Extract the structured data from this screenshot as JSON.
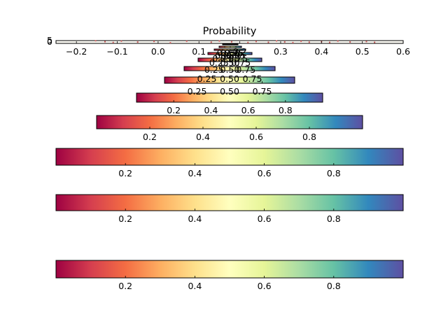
{
  "chart_data": {
    "type": "scatter",
    "title": "Probability",
    "xlim": [
      -0.25,
      0.6
    ],
    "ylim": [
      0,
      5
    ],
    "x_ticks": [
      -0.2,
      -0.1,
      0.0,
      0.1,
      0.2,
      0.3,
      0.4,
      0.5,
      0.6
    ],
    "x_tick_labels": [
      "−0.2",
      "−0.1",
      "0.0",
      "0.1",
      "0.2",
      "0.3",
      "0.4",
      "0.5",
      "0.6"
    ],
    "y_tick_labels": [
      "0",
      "5"
    ],
    "points": [
      {
        "x": -0.153,
        "y": 4.7
      },
      {
        "x": -0.13,
        "y": 3.1
      },
      {
        "x": -0.11,
        "y": 1.6
      },
      {
        "x": -0.09,
        "y": 4.0
      },
      {
        "x": -0.05,
        "y": 2.4
      },
      {
        "x": -0.01,
        "y": 3.6
      },
      {
        "x": 0.03,
        "y": 1.2
      },
      {
        "x": 0.07,
        "y": 3.9
      },
      {
        "x": 0.13,
        "y": 2.2
      },
      {
        "x": 0.15,
        "y": 4.2
      },
      {
        "x": 0.18,
        "y": 2.8
      },
      {
        "x": 0.22,
        "y": 1.6
      },
      {
        "x": 0.24,
        "y": 3.4
      },
      {
        "x": 0.27,
        "y": 2.0
      },
      {
        "x": 0.29,
        "y": 4.4
      },
      {
        "x": 0.31,
        "y": 2.6
      },
      {
        "x": 0.33,
        "y": 1.4
      },
      {
        "x": 0.35,
        "y": 3.8
      },
      {
        "x": 0.37,
        "y": 2.2
      },
      {
        "x": 0.4,
        "y": 3.0
      },
      {
        "x": 0.42,
        "y": 1.8
      },
      {
        "x": 0.44,
        "y": 4.1
      },
      {
        "x": 0.47,
        "y": 2.5
      },
      {
        "x": 0.51,
        "y": 3.3
      },
      {
        "x": 0.53,
        "y": 1.9
      }
    ],
    "colormap": {
      "name": "Spectral",
      "stops": [
        "#9e0142",
        "#d53e4f",
        "#f46d43",
        "#fdae61",
        "#fee08b",
        "#ffffbf",
        "#e6f598",
        "#abdda4",
        "#66c2a5",
        "#3288bd",
        "#5e4fa2"
      ]
    },
    "colorbars": [
      {
        "ticks": [
          0.2,
          0.4,
          0.6,
          0.8
        ],
        "tick_labels": [
          "0.2",
          "0.4",
          "0.6",
          "0.8"
        ]
      },
      {
        "ticks": [
          0.2,
          0.4,
          0.6,
          0.8
        ],
        "tick_labels": [
          "0.2",
          "0.4",
          "0.6",
          "0.8"
        ]
      },
      {
        "ticks": [
          0.2,
          0.4,
          0.6,
          0.8
        ],
        "tick_labels": [
          "0.2",
          "0.4",
          "0.6",
          "0.8"
        ]
      },
      {
        "ticks": [
          0.2,
          0.4,
          0.6,
          0.8
        ],
        "tick_labels": [
          "0.2",
          "0.4",
          "0.6",
          "0.8"
        ]
      },
      {
        "ticks": [
          0.2,
          0.4,
          0.6,
          0.8
        ],
        "tick_labels": [
          "0.2",
          "0.4",
          "0.6",
          "0.8"
        ]
      },
      {
        "ticks": [
          0.25,
          0.5,
          0.75
        ],
        "tick_labels": [
          "0.25",
          "0.50",
          "0.75"
        ]
      },
      {
        "ticks": [
          0.25,
          0.5,
          0.75
        ],
        "tick_labels": [
          "0.25",
          "0.50",
          "0.75"
        ]
      },
      {
        "ticks": [
          0.25,
          0.5,
          0.75
        ],
        "tick_labels": [
          "0.25",
          "0.50",
          "0.75"
        ]
      },
      {
        "ticks": [
          0.25,
          0.5,
          0.75
        ],
        "tick_labels": [
          "0.25",
          "0.50",
          "0.75"
        ]
      },
      {
        "ticks": [
          0.25,
          0.5,
          0.75
        ],
        "tick_labels": [
          "0.25",
          "0.50",
          "0.75"
        ]
      },
      {
        "ticks": [
          0.25,
          0.5,
          0.75
        ],
        "tick_labels": [
          "0.25",
          "0.50",
          "0.75"
        ]
      },
      {
        "ticks": [
          0.25,
          0.5,
          0.75
        ],
        "tick_labels": [
          "0.25",
          "0.50",
          "0.75"
        ]
      }
    ]
  }
}
